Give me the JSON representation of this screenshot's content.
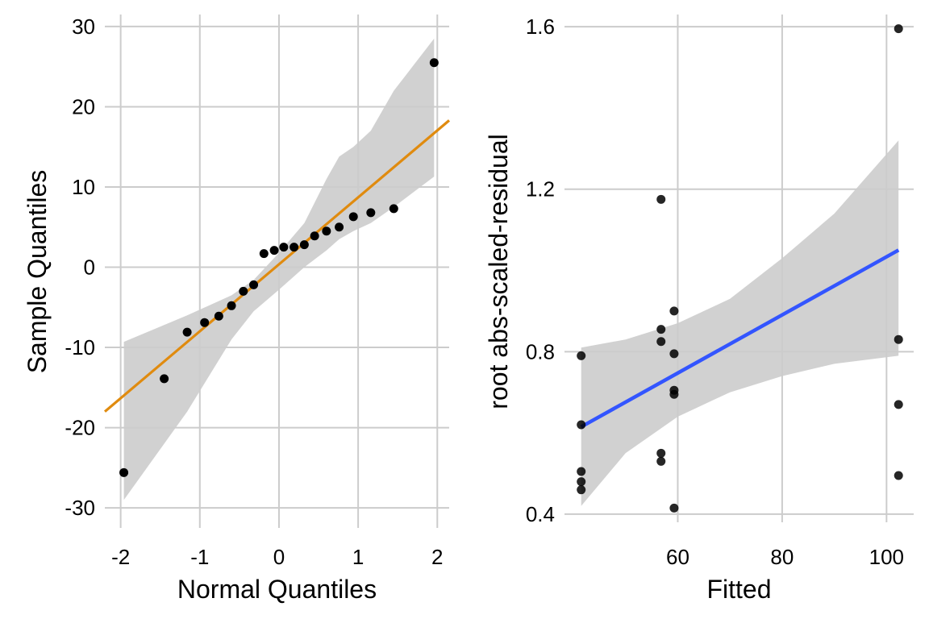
{
  "chart_data": [
    {
      "type": "scatter",
      "title": "",
      "xlabel": "Normal Quantiles",
      "ylabel": "Sample Quantiles",
      "xlim": [
        -2.2,
        2.15
      ],
      "ylim": [
        -32.5,
        31.5
      ],
      "x_ticks": [
        -2,
        -1,
        0,
        1,
        2
      ],
      "x_tick_labels": [
        "-2",
        "-1",
        "0",
        "1",
        "2"
      ],
      "y_ticks": [
        -30,
        -20,
        -10,
        0,
        10,
        20,
        30
      ],
      "y_tick_labels": [
        "-30",
        "-20",
        "-10",
        "0",
        "10",
        "20",
        "30"
      ],
      "grid": true,
      "legend": "none",
      "colors": {
        "points": "#000000",
        "line": "#e08b0f",
        "band": "#cccccc"
      },
      "points": [
        {
          "x": -1.96,
          "y": -25.6
        },
        {
          "x": -1.45,
          "y": -13.9
        },
        {
          "x": -1.16,
          "y": -8.1
        },
        {
          "x": -0.94,
          "y": -6.9
        },
        {
          "x": -0.76,
          "y": -6.1
        },
        {
          "x": -0.6,
          "y": -4.8
        },
        {
          "x": -0.45,
          "y": -3.0
        },
        {
          "x": -0.32,
          "y": -2.2
        },
        {
          "x": -0.19,
          "y": 1.7
        },
        {
          "x": -0.06,
          "y": 2.1
        },
        {
          "x": 0.06,
          "y": 2.5
        },
        {
          "x": 0.19,
          "y": 2.5
        },
        {
          "x": 0.32,
          "y": 2.8
        },
        {
          "x": 0.45,
          "y": 3.9
        },
        {
          "x": 0.6,
          "y": 4.5
        },
        {
          "x": 0.76,
          "y": 5.0
        },
        {
          "x": 0.94,
          "y": 6.3
        },
        {
          "x": 1.16,
          "y": 6.8
        },
        {
          "x": 1.45,
          "y": 7.3
        },
        {
          "x": 1.96,
          "y": 25.5
        }
      ],
      "reference_line": {
        "x": [
          -2.2,
          2.15
        ],
        "y": [
          -18.0,
          18.3
        ]
      },
      "band": {
        "x": [
          -1.96,
          -1.16,
          -0.6,
          -0.32,
          0.0,
          0.32,
          0.6,
          0.76,
          0.94,
          1.16,
          1.45,
          1.96
        ],
        "upper": [
          -9.3,
          -6.0,
          -3.5,
          -1.6,
          1.8,
          5.5,
          11.0,
          13.8,
          15.0,
          17.0,
          22.0,
          28.5
        ],
        "lower": [
          -29.0,
          -18.0,
          -9.0,
          -5.5,
          -2.8,
          0.0,
          2.1,
          3.5,
          4.5,
          5.5,
          7.5,
          11.3
        ]
      }
    },
    {
      "type": "scatter",
      "title": "",
      "xlabel": "Fitted",
      "ylabel": "root abs-scaled-residual",
      "xlim": [
        38.3,
        105.2
      ],
      "ylim": [
        0.38,
        1.63
      ],
      "x_ticks": [
        60,
        80,
        100
      ],
      "x_tick_labels": [
        "60",
        "80",
        "100"
      ],
      "y_ticks": [
        0.4,
        0.8,
        1.2,
        1.6
      ],
      "y_tick_labels": [
        "0.4",
        "0.8",
        "1.2",
        "1.6"
      ],
      "grid": true,
      "legend": "none",
      "colors": {
        "points": "#000000",
        "line": "#3355ff",
        "band": "#cccccc"
      },
      "points": [
        {
          "x": 41.5,
          "y": 0.79
        },
        {
          "x": 41.5,
          "y": 0.62
        },
        {
          "x": 41.5,
          "y": 0.505
        },
        {
          "x": 41.5,
          "y": 0.48
        },
        {
          "x": 41.5,
          "y": 0.46
        },
        {
          "x": 56.8,
          "y": 1.175
        },
        {
          "x": 56.8,
          "y": 0.855
        },
        {
          "x": 56.8,
          "y": 0.825
        },
        {
          "x": 56.8,
          "y": 0.55
        },
        {
          "x": 56.8,
          "y": 0.53
        },
        {
          "x": 59.3,
          "y": 0.9
        },
        {
          "x": 59.3,
          "y": 0.795
        },
        {
          "x": 59.3,
          "y": 0.705
        },
        {
          "x": 59.3,
          "y": 0.695
        },
        {
          "x": 59.3,
          "y": 0.415
        },
        {
          "x": 102.3,
          "y": 1.595
        },
        {
          "x": 102.3,
          "y": 0.83
        },
        {
          "x": 102.3,
          "y": 0.67
        },
        {
          "x": 102.3,
          "y": 0.495
        }
      ],
      "fit_line": {
        "x": [
          41.5,
          102.3
        ],
        "y": [
          0.615,
          1.05
        ]
      },
      "band": {
        "x": [
          41.5,
          50,
          60,
          70,
          80,
          90,
          102.3
        ],
        "upper": [
          0.81,
          0.83,
          0.87,
          0.93,
          1.03,
          1.14,
          1.32
        ],
        "lower": [
          0.42,
          0.55,
          0.64,
          0.7,
          0.74,
          0.77,
          0.79
        ]
      }
    }
  ]
}
